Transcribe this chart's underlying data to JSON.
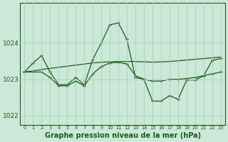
{
  "title": "Graphe pression niveau de la mer (hPa)",
  "background_color": "#cce8d8",
  "grid_color": "#aacfbe",
  "line_color": "#1a5c1a",
  "x_values": [
    0,
    1,
    2,
    3,
    4,
    5,
    6,
    7,
    8,
    9,
    10,
    11,
    12,
    13,
    14,
    15,
    16,
    17,
    18,
    19,
    20,
    21,
    22,
    23
  ],
  "series_jagged": [
    1023.2,
    1023.45,
    1023.65,
    1023.2,
    1022.85,
    1022.85,
    1023.05,
    1022.85,
    1023.55,
    1024.0,
    1024.5,
    1024.55,
    1024.1,
    1023.05,
    1023.0,
    1022.4,
    1022.4,
    1022.55,
    1022.45,
    1022.98,
    1022.98,
    1023.1,
    1023.52,
    1023.57
  ],
  "series_lower": [
    1023.2,
    1023.2,
    1023.2,
    1023.05,
    1022.82,
    1022.82,
    1022.95,
    1022.82,
    1023.15,
    1023.35,
    1023.45,
    1023.47,
    1023.42,
    1023.1,
    1023.0,
    1022.95,
    1022.95,
    1023.0,
    1023.0,
    1023.02,
    1023.05,
    1023.1,
    1023.15,
    1023.2
  ],
  "series_trend": [
    1023.2,
    1023.23,
    1023.27,
    1023.3,
    1023.33,
    1023.36,
    1023.39,
    1023.42,
    1023.45,
    1023.47,
    1023.48,
    1023.49,
    1023.49,
    1023.49,
    1023.48,
    1023.47,
    1023.48,
    1023.49,
    1023.51,
    1023.53,
    1023.55,
    1023.57,
    1023.59,
    1023.61
  ],
  "ylim": [
    1021.75,
    1025.1
  ],
  "yticks": [
    1022,
    1023,
    1024
  ],
  "title_fontsize": 7
}
